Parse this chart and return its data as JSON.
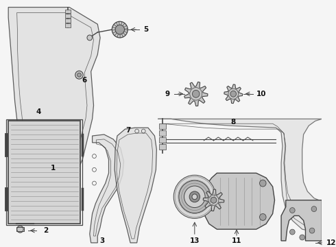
{
  "bg_color": "#f5f5f5",
  "lc": "#444444",
  "fc_light": "#e0e0e0",
  "fc_mid": "#c8c8c8",
  "fc_dark": "#a0a0a0",
  "label_fs": 7.5,
  "lw_main": 0.9,
  "lw_thin": 0.55
}
